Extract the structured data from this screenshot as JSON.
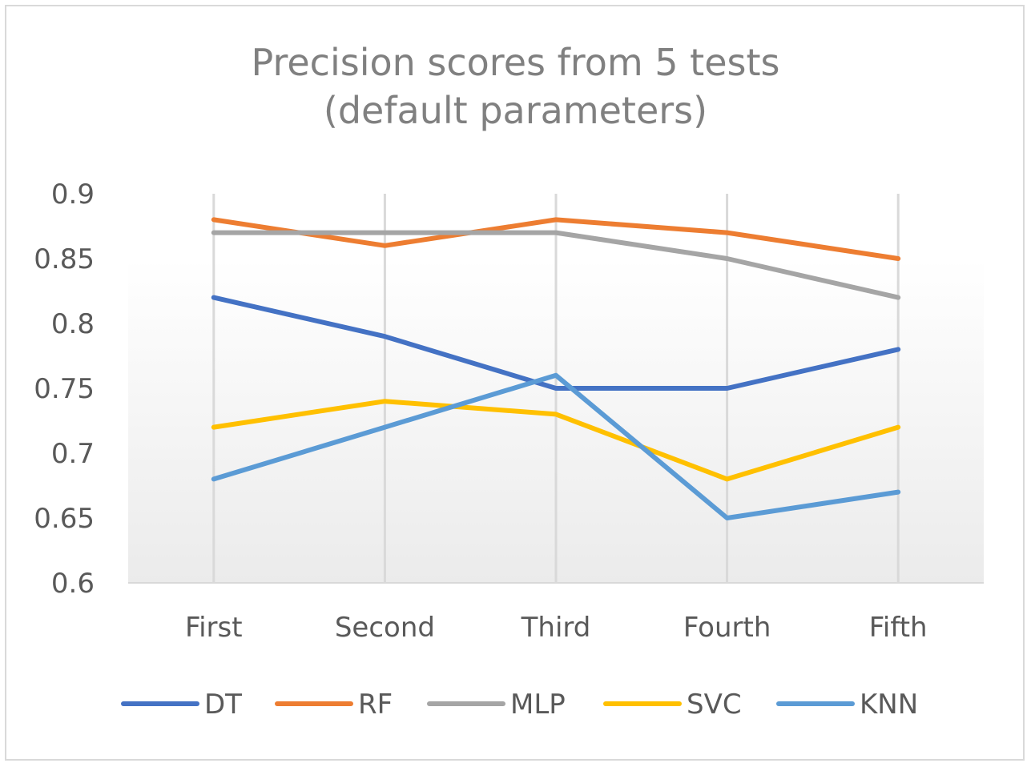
{
  "chart_data": {
    "type": "line",
    "title": [
      "Precision scores from 5 tests",
      "(default parameters)"
    ],
    "xlabel": "",
    "ylabel": "",
    "categories": [
      "First",
      "Second",
      "Third",
      "Fourth",
      "Fifth"
    ],
    "ylim": [
      0.6,
      0.9
    ],
    "yticks": [
      "0.6",
      "0.65",
      "0.7",
      "0.75",
      "0.8",
      "0.85",
      "0.9"
    ],
    "grid": "vertical",
    "legend": "bottom",
    "series": [
      {
        "name": "DT",
        "color": "#4472C4",
        "values": [
          0.82,
          0.79,
          0.75,
          0.75,
          0.78
        ]
      },
      {
        "name": "RF",
        "color": "#ED7D31",
        "values": [
          0.88,
          0.86,
          0.88,
          0.87,
          0.85
        ]
      },
      {
        "name": "MLP",
        "color": "#A5A5A5",
        "values": [
          0.87,
          0.87,
          0.87,
          0.85,
          0.82
        ]
      },
      {
        "name": "SVC",
        "color": "#FFC000",
        "values": [
          0.72,
          0.74,
          0.73,
          0.68,
          0.72
        ]
      },
      {
        "name": "KNN",
        "color": "#5B9BD5",
        "values": [
          0.68,
          0.72,
          0.76,
          0.65,
          0.67
        ]
      }
    ]
  }
}
